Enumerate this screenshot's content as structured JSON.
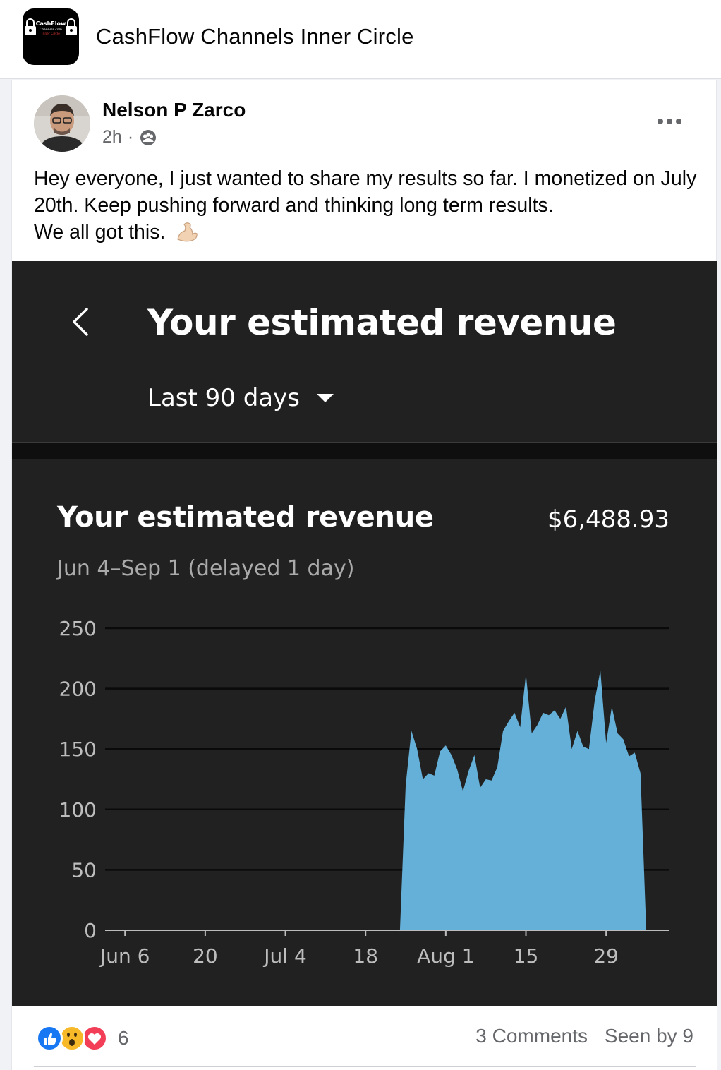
{
  "group": {
    "name": "CashFlow Channels Inner Circle",
    "logo_text_1": "CashFlow",
    "logo_text_2": "Channels.com",
    "logo_text_3": "Inner Circle"
  },
  "post": {
    "author": "Nelson P Zarco",
    "time": "2h",
    "separator": "·",
    "privacy_icon": "globe-icon",
    "more_icon": "more-options-icon",
    "text_line_1": "Hey everyone, I just wanted to share my results so far. I monetized on July 20th.  Keep pushing forward and thinking long term results.",
    "text_line_2": "We all got this.",
    "emoji": "flexed-biceps"
  },
  "screenshot": {
    "header_title": "Your estimated revenue",
    "range_label": "Last 90 days",
    "card_title": "Your estimated revenue",
    "total": "$6,488.93",
    "date_range": "Jun 4–Sep 1 (delayed 1 day)",
    "colors": {
      "background": "#212121",
      "area": "#65b0d8",
      "grid": "#0a0a0a"
    }
  },
  "chart_data": {
    "type": "area",
    "title": "Your estimated revenue",
    "subtitle": "Jun 4–Sep 1 (delayed 1 day)",
    "xlabel": "",
    "ylabel": "",
    "ylim": [
      0,
      250
    ],
    "yticks": [
      0,
      50,
      100,
      150,
      200,
      250
    ],
    "xtick_labels": [
      "Jun 6",
      "20",
      "Jul 4",
      "18",
      "Aug 1",
      "15",
      "29"
    ],
    "xtick_days": [
      2,
      16,
      30,
      44,
      58,
      72,
      86
    ],
    "grid": true,
    "x_start": "2023-06-04",
    "series": [
      {
        "values": [
          0,
          0,
          0,
          0,
          0,
          0,
          0,
          0,
          0,
          0,
          0,
          0,
          0,
          0,
          0,
          0,
          0,
          0,
          0,
          0,
          0,
          0,
          0,
          0,
          0,
          0,
          0,
          0,
          0,
          0,
          0,
          0,
          0,
          0,
          0,
          0,
          0,
          0,
          0,
          0,
          0,
          0,
          0,
          0,
          0,
          0,
          0,
          0,
          0,
          0,
          0,
          120,
          165,
          150,
          125,
          130,
          128,
          148,
          153,
          145,
          133,
          115,
          132,
          145,
          118,
          125,
          124,
          135,
          165,
          173,
          180,
          168,
          212,
          163,
          170,
          180,
          178,
          182,
          175,
          185,
          150,
          165,
          152,
          150,
          190,
          215,
          155,
          185,
          163,
          158,
          144,
          147,
          130,
          0
        ]
      }
    ]
  },
  "footer": {
    "reaction_count": "6",
    "comments": "3 Comments",
    "seen_by": "Seen by 9",
    "reaction_icons": [
      "like-icon",
      "wow-icon",
      "love-icon"
    ]
  }
}
